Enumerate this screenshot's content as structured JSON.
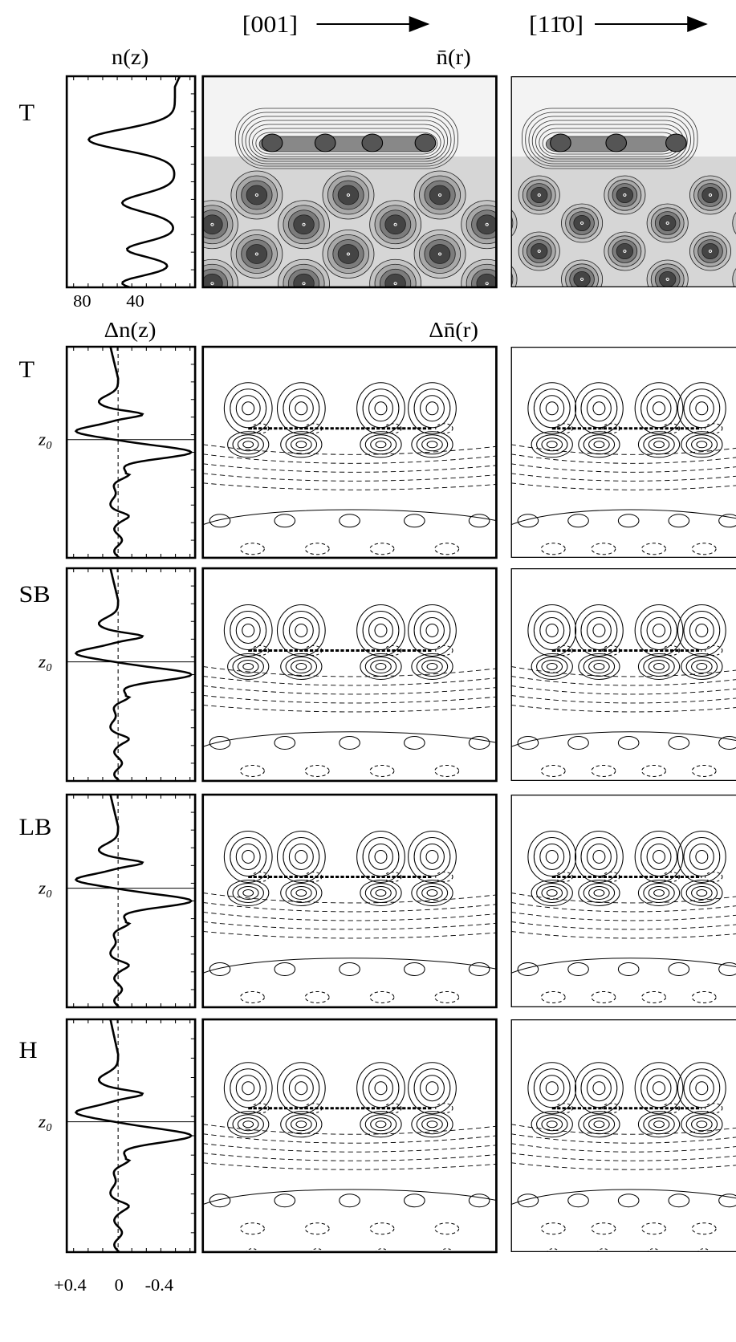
{
  "column_headers": {
    "left": "[001]",
    "right": "[11̄0]"
  },
  "panel_titles": {
    "density_profile": "n(z)",
    "density_map": "n̄(r)",
    "difference_profile": "Δn(z)",
    "difference_map": "Δn̄(r)"
  },
  "rows": [
    {
      "label": "T"
    },
    {
      "label": "T",
      "z0": "z₀"
    },
    {
      "label": "SB",
      "z0": "z₀"
    },
    {
      "label": "LB",
      "z0": "z₀"
    },
    {
      "label": "H",
      "z0": "z₀"
    }
  ],
  "axis_labels": {
    "density_profile": [
      "80",
      "40"
    ],
    "difference_profile": [
      "+0.4",
      "0",
      "-0.4"
    ]
  }
}
